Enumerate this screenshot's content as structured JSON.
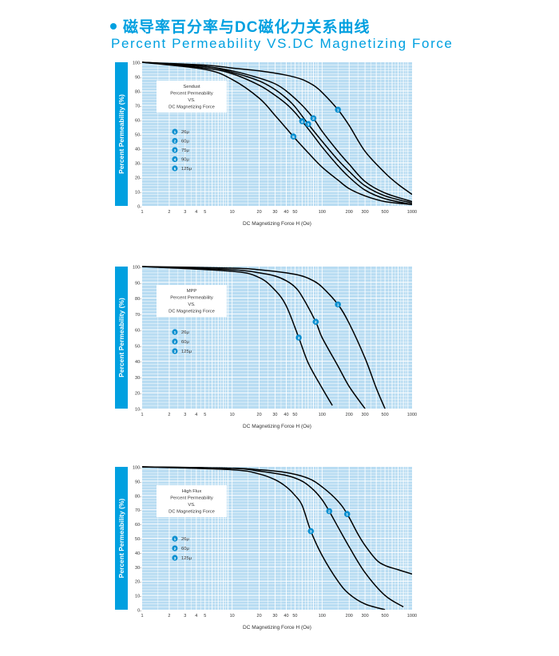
{
  "header": {
    "title_cn": "磁导率百分率与DC磁化力关系曲线",
    "title_en": "Percent Permeability VS.DC Magnetizing Force"
  },
  "colors": {
    "accent": "#00a0e0",
    "plot_bg": "#b8dcf2",
    "grid": "#ffffff",
    "curve": "#000000",
    "marker": "#0a8fd0"
  },
  "chart_data": [
    {
      "type": "line",
      "x_scale": "log",
      "xlabel": "DC Magnetizing Force H (Oe)",
      "ylabel": "Percent Permeability (%)",
      "xlim": [
        1,
        1000
      ],
      "ylim": [
        0,
        100
      ],
      "x_ticks": [
        "1",
        "2",
        "3",
        "4",
        "5",
        "10",
        "20",
        "30",
        "40",
        "50",
        "100",
        "200",
        "300",
        "500",
        "1000"
      ],
      "y_ticks": [
        "0-",
        "10-",
        "20-",
        "30-",
        "40-",
        "50-",
        "60-",
        "70-",
        "80-",
        "90-",
        "100-"
      ],
      "annotation": [
        "Sendust",
        "Percent Permeability",
        "VS.",
        "DC Magnetizing Force"
      ],
      "legend": [
        {
          "id": "1",
          "label": "26μ"
        },
        {
          "id": "2",
          "label": "60μ"
        },
        {
          "id": "3",
          "label": "75μ"
        },
        {
          "id": "4",
          "label": "90μ"
        },
        {
          "id": "5",
          "label": "125μ"
        }
      ],
      "series": [
        {
          "id": "1",
          "marker_x": 150,
          "x": [
            1,
            5,
            10,
            20,
            40,
            60,
            80,
            100,
            150,
            200,
            300,
            500,
            700,
            1000
          ],
          "y": [
            100,
            98,
            96,
            94,
            91,
            88,
            84,
            79,
            67,
            56,
            38,
            23,
            15,
            8
          ]
        },
        {
          "id": "2",
          "marker_x": 80,
          "x": [
            1,
            5,
            10,
            20,
            30,
            40,
            60,
            80,
            100,
            150,
            200,
            300,
            500,
            1000
          ],
          "y": [
            100,
            97,
            94,
            89,
            85,
            80,
            70,
            61,
            52,
            38,
            29,
            17,
            9,
            3
          ]
        },
        {
          "id": "3",
          "marker_x": 70,
          "x": [
            1,
            5,
            10,
            20,
            30,
            40,
            50,
            70,
            100,
            150,
            200,
            300,
            500,
            1000
          ],
          "y": [
            100,
            97,
            93,
            87,
            81,
            75,
            69,
            57,
            45,
            32,
            24,
            14,
            7,
            2
          ]
        },
        {
          "id": "4",
          "marker_x": 60,
          "x": [
            1,
            5,
            10,
            20,
            30,
            40,
            50,
            60,
            80,
            100,
            150,
            200,
            300,
            500,
            1000
          ],
          "y": [
            100,
            96,
            92,
            84,
            77,
            71,
            65,
            59,
            49,
            41,
            28,
            20,
            11,
            5,
            1
          ]
        },
        {
          "id": "5",
          "marker_x": 48,
          "x": [
            1,
            5,
            10,
            20,
            30,
            40,
            50,
            70,
            100,
            150,
            200,
            300,
            500,
            1000
          ],
          "y": [
            100,
            95,
            88,
            75,
            63,
            54,
            47,
            37,
            27,
            18,
            12,
            7,
            3,
            1
          ]
        }
      ]
    },
    {
      "type": "line",
      "x_scale": "log",
      "xlabel": "DC Magnetizing Force H (Oe)",
      "ylabel": "Percent Permeability (%)",
      "xlim": [
        1,
        1000
      ],
      "ylim": [
        10,
        100
      ],
      "x_ticks": [
        "1",
        "2",
        "3",
        "4",
        "5",
        "10",
        "20",
        "30",
        "40",
        "50",
        "100",
        "200",
        "300",
        "500",
        "1000"
      ],
      "y_ticks": [
        "10-",
        "20-",
        "30-",
        "40-",
        "50-",
        "60-",
        "70-",
        "80-",
        "90-",
        "100-"
      ],
      "annotation": [
        "MPP",
        "Percent Permeability",
        "VS.",
        "DC Magnetizing Force"
      ],
      "legend": [
        {
          "id": "1",
          "label": "26μ"
        },
        {
          "id": "2",
          "label": "60μ"
        },
        {
          "id": "3",
          "label": "125μ"
        }
      ],
      "series": [
        {
          "id": "1",
          "marker_x": 150,
          "x": [
            1,
            10,
            20,
            40,
            60,
            80,
            100,
            150,
            200,
            300,
            400,
            500
          ],
          "y": [
            100,
            99,
            98,
            96,
            94,
            91,
            87,
            76,
            64,
            42,
            23,
            10
          ]
        },
        {
          "id": "2",
          "marker_x": 85,
          "x": [
            1,
            10,
            20,
            30,
            40,
            50,
            60,
            85,
            100,
            150,
            200,
            300
          ],
          "y": [
            100,
            98,
            96,
            94,
            91,
            87,
            81,
            65,
            55,
            37,
            24,
            10
          ]
        },
        {
          "id": "3",
          "marker_x": 55,
          "x": [
            1,
            10,
            20,
            30,
            40,
            55,
            70,
            100,
            130
          ],
          "y": [
            100,
            97,
            93,
            85,
            75,
            55,
            39,
            23,
            12
          ]
        }
      ]
    },
    {
      "type": "line",
      "x_scale": "log",
      "xlabel": "DC Magnetizing Force H (Oe)",
      "ylabel": "Percent Permeability (%)",
      "xlim": [
        1,
        1000
      ],
      "ylim": [
        0,
        100
      ],
      "x_ticks": [
        "1",
        "2",
        "3",
        "4",
        "5",
        "10",
        "20",
        "30",
        "40",
        "50",
        "100",
        "200",
        "300",
        "500",
        "1000"
      ],
      "y_ticks": [
        "0-",
        "10-",
        "20-",
        "30-",
        "40-",
        "50-",
        "60-",
        "70-",
        "80-",
        "90-",
        "100-"
      ],
      "annotation": [
        "High Flux",
        "Percent Permeability",
        "VS.",
        "DC Magnetizing Force"
      ],
      "legend": [
        {
          "id": "1",
          "label": "26μ"
        },
        {
          "id": "2",
          "label": "60μ"
        },
        {
          "id": "3",
          "label": "125μ"
        }
      ],
      "series": [
        {
          "id": "1",
          "marker_x": 190,
          "x": [
            1,
            10,
            20,
            40,
            70,
            100,
            150,
            190,
            250,
            300,
            400,
            500,
            700,
            1000
          ],
          "y": [
            100,
            99,
            98,
            96,
            92,
            86,
            76,
            67,
            53,
            45,
            35,
            31,
            28,
            25
          ]
        },
        {
          "id": "2",
          "marker_x": 120,
          "x": [
            1,
            10,
            20,
            40,
            60,
            80,
            100,
            120,
            150,
            200,
            300,
            500,
            800
          ],
          "y": [
            100,
            99,
            97,
            94,
            90,
            84,
            77,
            69,
            58,
            44,
            26,
            10,
            2
          ]
        },
        {
          "id": "3",
          "marker_x": 75,
          "x": [
            1,
            10,
            20,
            30,
            40,
            50,
            60,
            75,
            100,
            150,
            200,
            300,
            500
          ],
          "y": [
            100,
            98,
            95,
            91,
            86,
            80,
            73,
            55,
            38,
            20,
            11,
            4,
            0
          ]
        }
      ]
    }
  ]
}
